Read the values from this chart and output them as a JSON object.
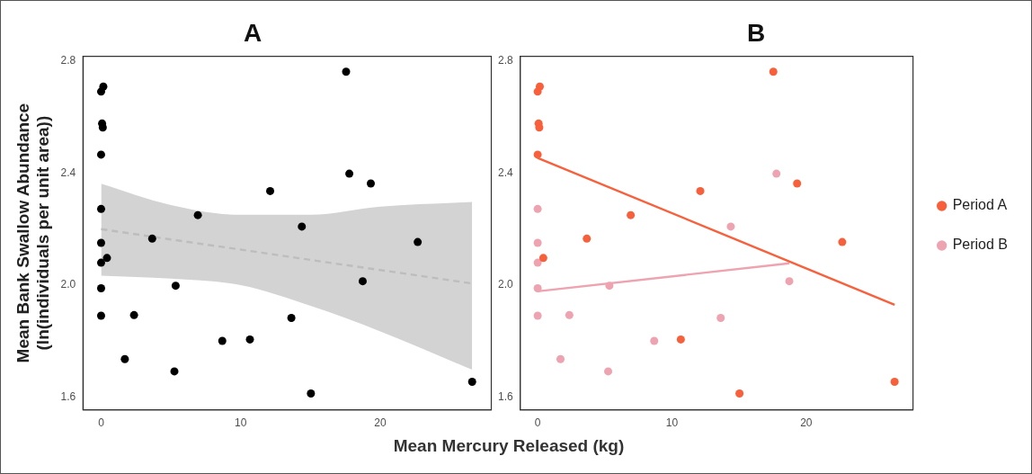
{
  "chart_data": [
    {
      "type": "scatter",
      "title": "A",
      "xlabel": "Mean Mercury Released (kg)",
      "ylabel": "Mean Bank Swallow Abundance\n(ln(individuals per unit area))",
      "xlim": [
        -1.3,
        27.95
      ],
      "ylim": [
        1.555,
        2.817
      ],
      "xticks": [
        0,
        10,
        20
      ],
      "yticks": [
        1.6,
        {
          "value": 2.0,
          "label": "2.0"
        },
        2.4,
        2.8
      ],
      "grid": false,
      "legend": false,
      "series": [
        {
          "color": "#000000",
          "marker": "circle",
          "x": [
            0,
            0.16,
            0.07,
            0.12,
            0,
            0,
            0,
            0,
            0.42,
            0,
            0,
            1.7,
            2.36,
            3.66,
            5.25,
            5.34,
            6.93,
            8.68,
            10.66,
            12.11,
            13.63,
            14.38,
            15.03,
            17.55,
            17.78,
            18.74,
            19.32,
            22.68,
            26.58
          ],
          "values": [
            2.691,
            2.709,
            2.577,
            2.563,
            2.466,
            2.272,
            2.151,
            2.08,
            2.097,
            1.989,
            1.891,
            1.736,
            1.893,
            2.166,
            1.692,
            1.998,
            2.25,
            1.801,
            1.806,
            2.336,
            1.883,
            2.209,
            1.613,
            2.762,
            2.398,
            2.014,
            2.363,
            2.154,
            1.655
          ]
        },
        {
          "type": "line",
          "marker": "none",
          "color": "#bdbdbd",
          "line_style": "dashed",
          "x": [
            0,
            5,
            10,
            15,
            20,
            26.58
          ],
          "values": [
            2.2,
            2.163,
            2.127,
            2.09,
            2.054,
            2.006
          ],
          "lower": [
            2.034,
            2.023,
            2.0,
            1.926,
            1.835,
            1.698
          ],
          "upper": [
            2.362,
            2.286,
            2.251,
            2.251,
            2.28,
            2.297
          ]
        }
      ]
    },
    {
      "type": "scatter",
      "title": "B",
      "xlim": [
        -1.3,
        27.95
      ],
      "ylim": [
        1.555,
        2.817
      ],
      "xticks": [
        0,
        10,
        20
      ],
      "yticks": [
        1.6,
        {
          "value": 2.0,
          "label": "2.0"
        },
        2.4,
        2.8
      ],
      "grid": false,
      "legend": "right",
      "series": [
        {
          "name": "Period A",
          "marker": "circle",
          "color": "#f8603c",
          "x": [
            0,
            0.16,
            0.07,
            0.12,
            0,
            0.42,
            3.66,
            6.93,
            10.66,
            12.11,
            15.03,
            17.55,
            19.32,
            22.68,
            26.58
          ],
          "values": [
            2.691,
            2.709,
            2.577,
            2.563,
            2.466,
            2.097,
            2.166,
            2.25,
            1.806,
            2.336,
            1.613,
            2.762,
            2.363,
            2.154,
            1.655
          ]
        },
        {
          "name": "Period B",
          "marker": "circle",
          "color": "#eea3b0",
          "x": [
            0,
            0,
            0,
            0,
            0,
            1.7,
            2.36,
            5.25,
            5.34,
            8.68,
            13.63,
            14.38,
            17.78,
            18.74
          ],
          "values": [
            2.272,
            2.151,
            2.08,
            1.989,
            1.891,
            1.736,
            1.893,
            1.692,
            1.998,
            1.801,
            1.883,
            2.209,
            2.398,
            2.014
          ]
        },
        {
          "type": "line",
          "marker": "none",
          "color": "#f8603c",
          "x": [
            0,
            26.58
          ],
          "values": [
            2.454,
            1.93
          ]
        },
        {
          "type": "line",
          "marker": "none",
          "color": "#eea3b0",
          "x": [
            0,
            18.74
          ],
          "values": [
            1.978,
            2.078
          ]
        }
      ]
    }
  ]
}
